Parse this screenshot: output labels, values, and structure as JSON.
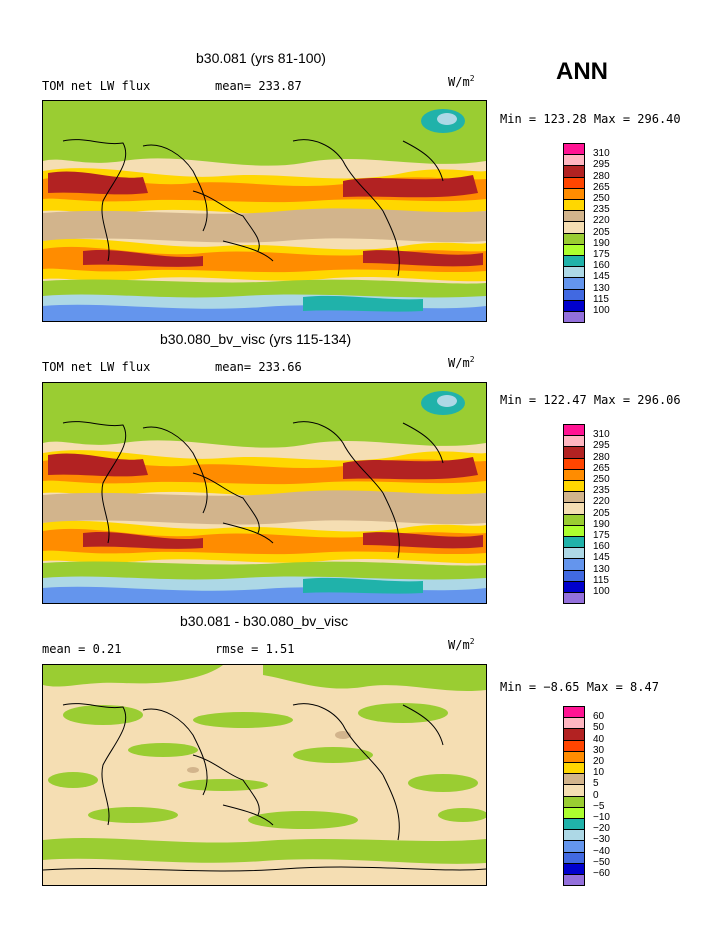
{
  "season": "ANN",
  "panels": [
    {
      "title": "b30.081 (yrs 81-100)",
      "left_label": "TOM net LW flux",
      "mean_text": "mean= 233.87",
      "units_base": "W/m",
      "units_exp": "2",
      "minmax": "Min = 123.28 Max = 296.40",
      "kind": "abs",
      "levels": [
        "310",
        "295",
        "280",
        "265",
        "250",
        "235",
        "220",
        "205",
        "190",
        "175",
        "160",
        "145",
        "130",
        "115",
        "100"
      ]
    },
    {
      "title": "b30.080_bv_visc (yrs 115-134)",
      "left_label": "TOM net LW flux",
      "mean_text": "mean= 233.66",
      "units_base": "W/m",
      "units_exp": "2",
      "minmax": "Min = 122.47 Max = 296.06",
      "kind": "abs",
      "levels": [
        "310",
        "295",
        "280",
        "265",
        "250",
        "235",
        "220",
        "205",
        "190",
        "175",
        "160",
        "145",
        "130",
        "115",
        "100"
      ]
    },
    {
      "title": "b30.081 - b30.080_bv_visc",
      "left_label": "mean =    0.21",
      "mean_text": "rmse =    1.51",
      "units_base": "W/m",
      "units_exp": "2",
      "minmax": "Min =  −8.65 Max =    8.47",
      "kind": "diff",
      "levels": [
        "60",
        "50",
        "40",
        "30",
        "20",
        "10",
        "5",
        "0",
        "−5",
        "−10",
        "−20",
        "−30",
        "−40",
        "−50",
        "−60"
      ]
    }
  ],
  "colors": {
    "palette": [
      "#ff1493",
      "#ffb6c1",
      "#b22222",
      "#ff4500",
      "#ff8c00",
      "#ffd700",
      "#d2b48c",
      "#f5deb3",
      "#9acd32",
      "#adff2f",
      "#20b2aa",
      "#add8e6",
      "#6495ed",
      "#4169e1",
      "#0000cd",
      "#9370db"
    ]
  }
}
